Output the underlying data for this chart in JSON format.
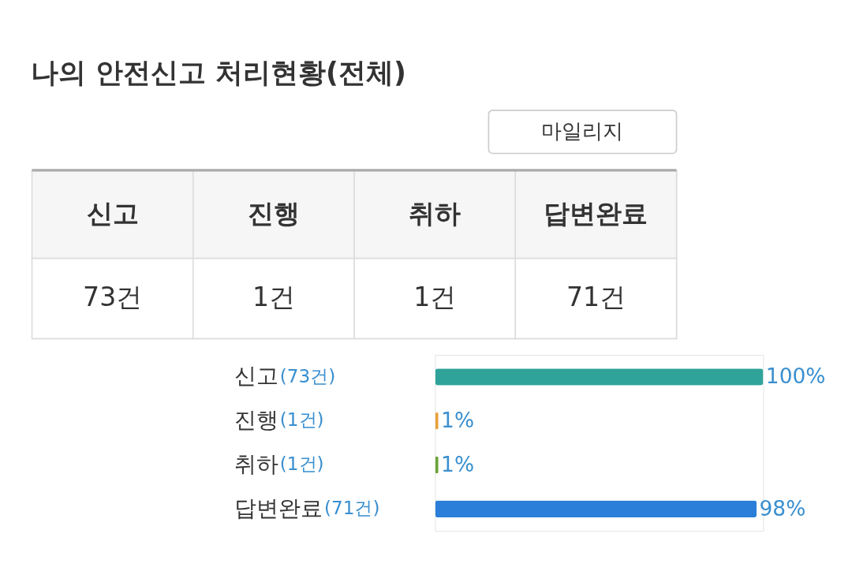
{
  "chart_data": {
    "type": "bar",
    "orientation": "horizontal",
    "title": "나의 안전신고 처리현황(전체)",
    "categories": [
      "신고",
      "진행",
      "취하",
      "답변완료"
    ],
    "values": [
      100,
      1,
      1,
      98
    ],
    "colors": [
      "#2fa39a",
      "#e9a23b",
      "#6aa33a",
      "#2b7fd8"
    ],
    "value_labels": [
      "100%",
      "1%",
      "1%",
      "98%"
    ],
    "annotations": [
      "마일리지",
      "73건",
      "1건",
      "1건",
      "71건",
      "(73건)",
      "(1건)",
      "(1건)",
      "(71건)"
    ],
    "legend": false,
    "grid": false
  }
}
